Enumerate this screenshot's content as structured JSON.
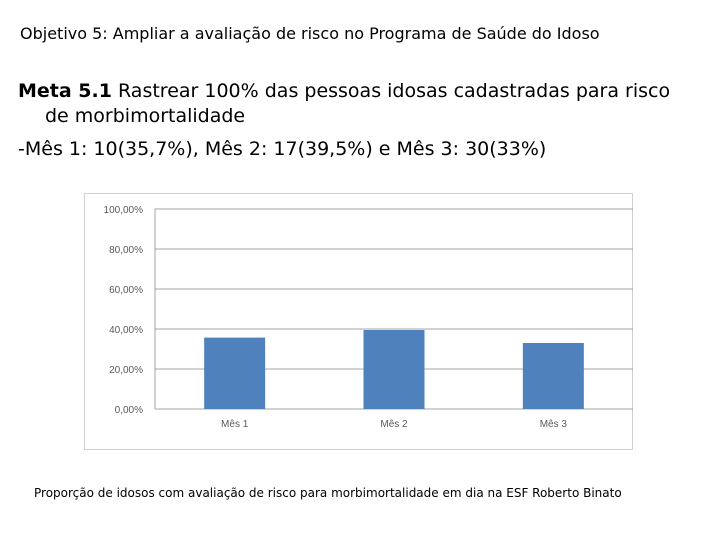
{
  "slide": {
    "title": "Objetivo 5: Ampliar a avaliação de risco no Programa de Saúde do Idoso",
    "meta_label": "Meta 5.1",
    "meta_text_line1": " Rastrear 100% das pessoas idosas cadastradas para risco",
    "meta_text_line2": "de morbimortalidade",
    "meta_results": "-Mês 1: 10(35,7%), Mês 2: 17(39,5%) e Mês 3: 30(33%)",
    "caption": "Proporção de idosos com avaliação de risco para morbimortalidade em dia na ESF Roberto Binato"
  },
  "chart_data": {
    "type": "bar",
    "categories": [
      "Mês 1",
      "Mês 2",
      "Mês 3"
    ],
    "values": [
      35.7,
      39.5,
      33.0
    ],
    "ylim": [
      0,
      100
    ],
    "yticks": [
      0,
      20,
      40,
      60,
      80,
      100
    ],
    "ytick_labels": [
      "0,00%",
      "20,00%",
      "40,00%",
      "60,00%",
      "80,00%",
      "100,00%"
    ],
    "grid": true,
    "legend": "none",
    "bar_color": "#4f81bd",
    "grid_color": "#a6a6a6",
    "axis_text_color": "#595959"
  }
}
